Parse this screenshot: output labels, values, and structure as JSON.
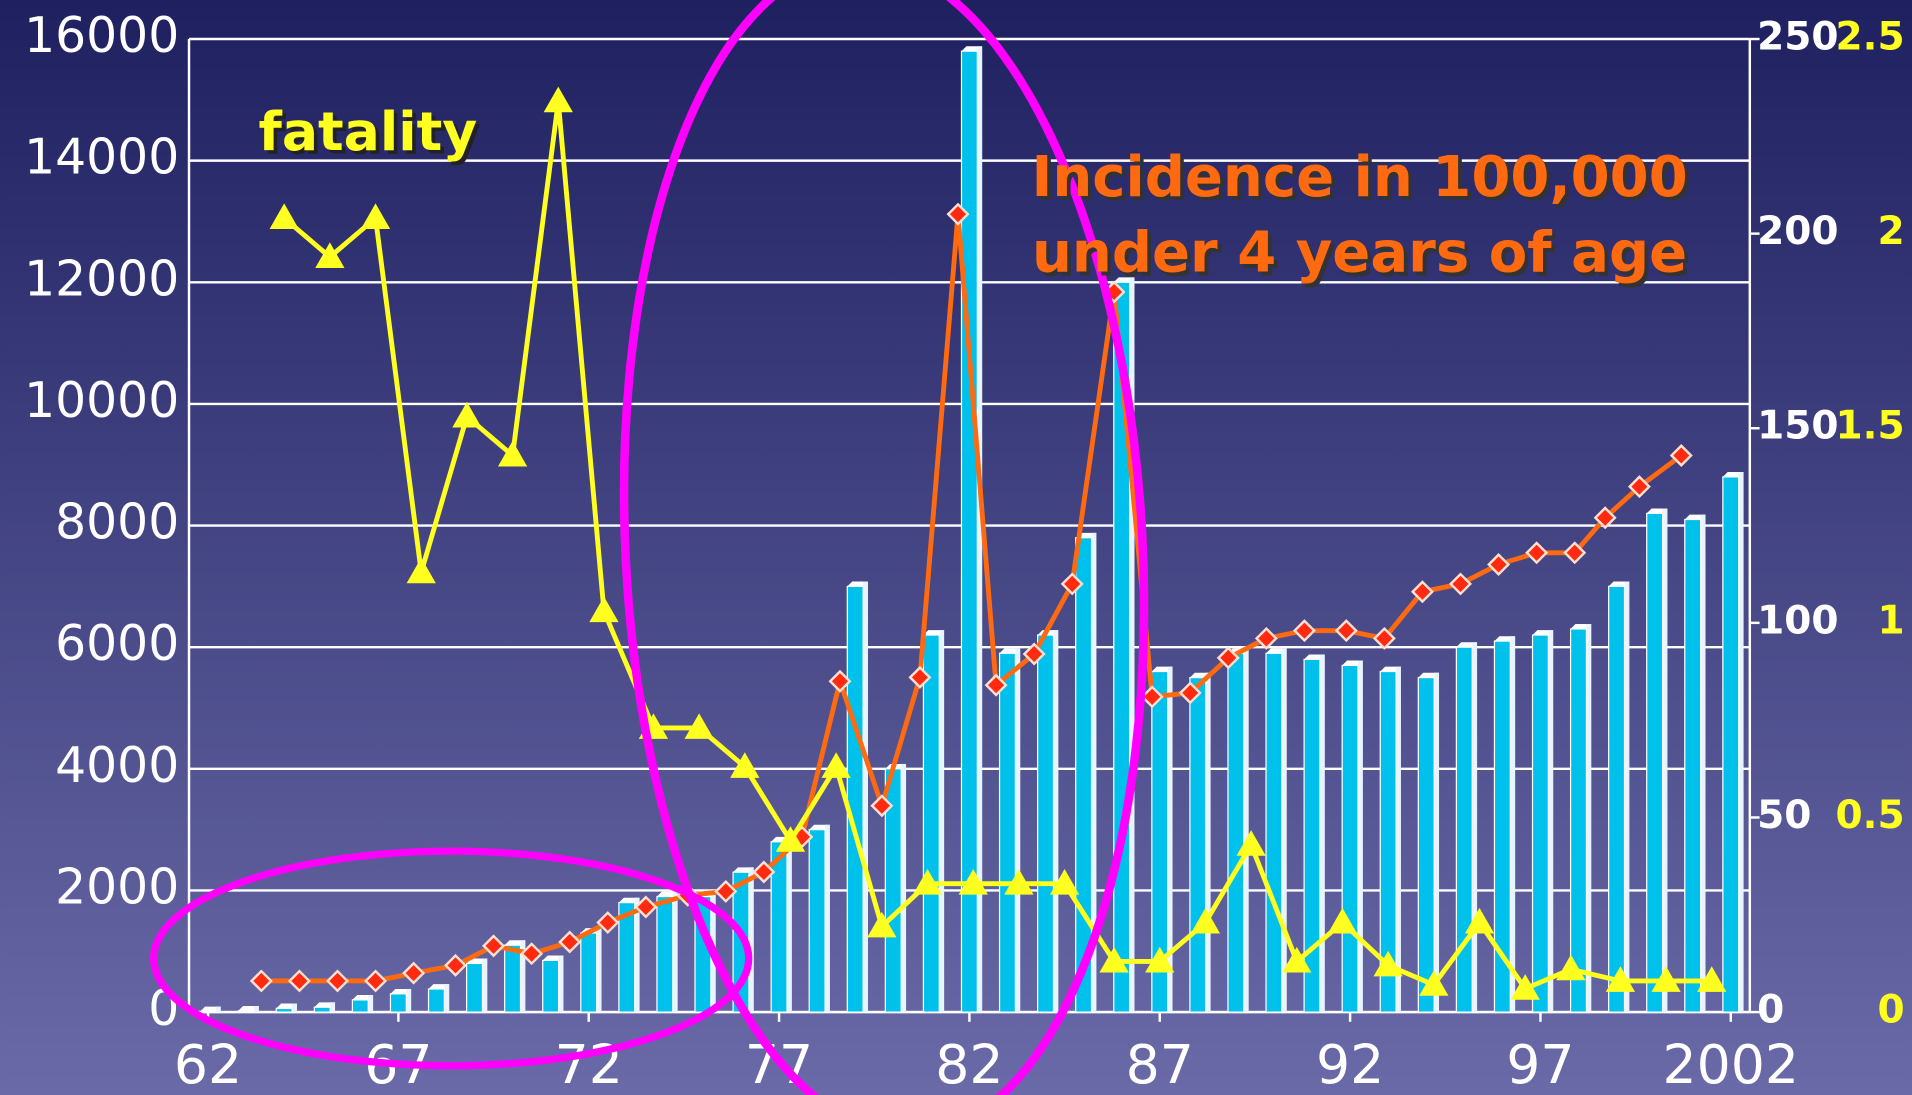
{
  "chart_data": {
    "type": "bar",
    "annotations": [
      "fatality",
      "Incidence in 100,000",
      "under 4 years of age"
    ],
    "xlim": [
      61.5,
      102.5
    ],
    "xticks": [
      62,
      67,
      72,
      77,
      82,
      87,
      92,
      97,
      {
        "value": 102,
        "label": "2002"
      }
    ],
    "ylim": [
      0,
      16000
    ],
    "yticks": [
      0,
      2000,
      4000,
      6000,
      8000,
      10000,
      12000,
      14000,
      16000
    ],
    "y2lim": [
      0,
      250
    ],
    "y2ticks": [
      0,
      50,
      100,
      150,
      200,
      250
    ],
    "y3lim": [
      0,
      2.5
    ],
    "y3ticks": [
      0,
      0.5,
      1,
      1.5,
      2,
      2.5
    ],
    "grid": true,
    "series": [
      {
        "type": "bar",
        "color": "#00c0ec",
        "x": [
          62,
          63,
          64,
          65,
          66,
          67,
          68,
          69,
          70,
          71,
          72,
          73,
          74,
          75,
          76,
          77,
          78,
          79,
          80,
          81,
          82,
          83,
          84,
          85,
          86,
          87,
          88,
          89,
          90,
          91,
          92,
          93,
          94,
          95,
          96,
          97,
          98,
          99,
          100,
          101,
          102
        ],
        "values": [
          10,
          20,
          60,
          80,
          200,
          300,
          380,
          800,
          1100,
          850,
          1300,
          1800,
          1900,
          1900,
          2300,
          2800,
          3000,
          7000,
          4000,
          6200,
          15800,
          5900,
          6200,
          7800,
          12000,
          5600,
          5500,
          5900,
          5900,
          5800,
          5700,
          5600,
          5500,
          6000,
          6100,
          6200,
          6300,
          7000,
          8200,
          8100,
          8800
        ]
      },
      {
        "type": "line",
        "axis": "y2",
        "color": "#ff6a10",
        "marker_color": "#ff2a10",
        "x": [
          63.4,
          64.4,
          65.4,
          66.4,
          67.4,
          68.5,
          69.5,
          70.5,
          71.5,
          72.5,
          73.5,
          74.6,
          75.6,
          76.6,
          77.6,
          78.6,
          79.7,
          80.7,
          81.7,
          82.7,
          83.7,
          84.7,
          85.8,
          86.8,
          87.8,
          88.8,
          89.8,
          90.8,
          91.9,
          92.9,
          93.9,
          94.9,
          95.9,
          96.9,
          97.9,
          98.7,
          99.6,
          100.7
        ],
        "values": [
          8,
          8,
          8,
          8,
          10,
          12,
          17,
          15,
          18,
          23,
          27,
          30,
          31,
          36,
          45,
          85,
          53,
          86,
          205,
          84,
          92,
          110,
          185,
          81,
          82,
          91,
          96,
          98,
          98,
          96,
          108,
          110,
          115,
          118,
          118,
          127,
          135,
          143
        ]
      },
      {
        "type": "line",
        "axis": "y3",
        "color": "#ffff20",
        "x": [
          64.0,
          65.2,
          66.4,
          67.6,
          68.8,
          70.0,
          71.2,
          72.4,
          73.7,
          74.9,
          76.1,
          77.3,
          78.5,
          79.7,
          80.9,
          82.1,
          83.3,
          84.5,
          85.8,
          87.0,
          88.2,
          89.4,
          90.6,
          91.8,
          93.0,
          94.2,
          95.4,
          96.6,
          97.8,
          99.1,
          100.3,
          101.5
        ],
        "values": [
          2.04,
          1.94,
          2.04,
          1.13,
          1.53,
          1.43,
          2.34,
          1.03,
          0.73,
          0.73,
          0.63,
          0.44,
          0.63,
          0.22,
          0.33,
          0.33,
          0.33,
          0.33,
          0.13,
          0.13,
          0.23,
          0.43,
          0.13,
          0.23,
          0.12,
          0.07,
          0.23,
          0.06,
          0.11,
          0.08,
          0.08,
          0.08
        ]
      }
    ]
  }
}
